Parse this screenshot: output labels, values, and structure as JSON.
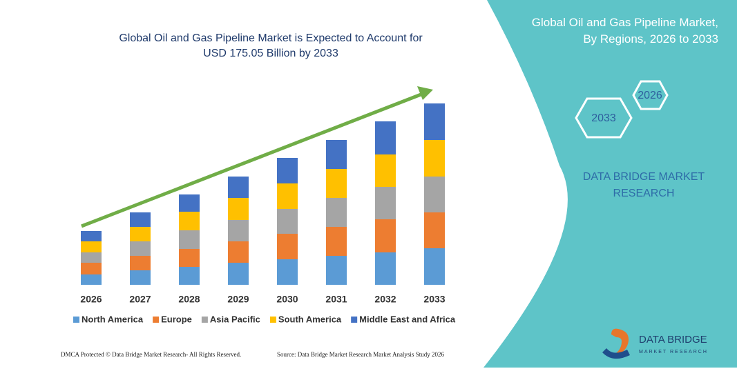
{
  "chart_data": {
    "type": "stacked-bar",
    "title": "Global Oil and Gas Pipeline Market is Expected to Account for USD 175.05 Billion by 2033",
    "categories": [
      "2026",
      "2027",
      "2028",
      "2029",
      "2030",
      "2031",
      "2032",
      "2033"
    ],
    "series": [
      {
        "name": "North America",
        "color": "#5b9bd5",
        "values": [
          15,
          21,
          26,
          32,
          37,
          42,
          47,
          53
        ]
      },
      {
        "name": "Europe",
        "color": "#ed7d31",
        "values": [
          17,
          21,
          26,
          31,
          37,
          42,
          48,
          52
        ]
      },
      {
        "name": "Asia Pacific",
        "color": "#a5a5a5",
        "values": [
          15,
          21,
          27,
          31,
          36,
          42,
          47,
          52
        ]
      },
      {
        "name": "South America",
        "color": "#ffc000",
        "values": [
          16,
          21,
          27,
          32,
          37,
          42,
          47,
          53
        ]
      },
      {
        "name": "Middle East and Africa",
        "color": "#4472c4",
        "values": [
          15,
          21,
          25,
          31,
          37,
          42,
          48,
          53
        ]
      }
    ]
  },
  "panel": {
    "title": "Global Oil and Gas Pipeline Market, By Regions, 2026 to 2033",
    "hex_start": "2026",
    "hex_end": "2033",
    "brand_line1": "DATA BRIDGE MARKET",
    "brand_line2": "RESEARCH",
    "logo_name": "DATA BRIDGE",
    "logo_sub": "MARKET RESEARCH"
  },
  "footer": {
    "left": "DMCA Protected © Data Bridge Market Research- All Rights Reserved.",
    "right": "Source: Data Bridge Market Research Market Analysis Study 2026"
  }
}
